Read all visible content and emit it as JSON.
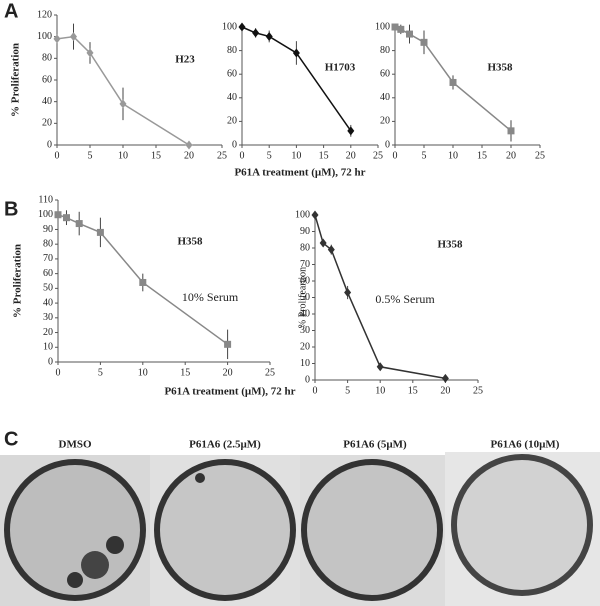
{
  "panel_letters": [
    "A",
    "B",
    "C"
  ],
  "x_axis_labels": [
    "P61A treatment (µM), 72 hr",
    "P61A treatment (µM), 72 hr"
  ],
  "chart_data": [
    {
      "type": "line",
      "title": "H23",
      "ylabel": "% Proliferation",
      "x": [
        0,
        2.5,
        5,
        10,
        20
      ],
      "values": [
        98,
        100,
        85,
        38,
        0
      ],
      "errors": [
        3,
        12,
        10,
        15,
        1
      ],
      "color": "#999999",
      "marker": "diamond",
      "xlim": [
        0,
        25
      ],
      "ylim": [
        0,
        120
      ],
      "xticks": [
        0,
        5,
        10,
        15,
        20,
        25
      ],
      "yticks": [
        0,
        20,
        40,
        60,
        80,
        100,
        120
      ]
    },
    {
      "type": "line",
      "title": "H1703",
      "x": [
        0,
        2.5,
        5,
        10,
        20
      ],
      "values": [
        100,
        95,
        92,
        78,
        12
      ],
      "errors": [
        2,
        4,
        5,
        10,
        5
      ],
      "color": "#111111",
      "marker": "diamond",
      "xlim": [
        0,
        25
      ],
      "ylim": [
        0,
        100
      ],
      "xticks": [
        0,
        5,
        10,
        15,
        20,
        25
      ],
      "yticks": [
        0,
        20,
        40,
        60,
        80,
        100
      ]
    },
    {
      "type": "line",
      "title": "H358",
      "x": [
        0,
        1,
        2.5,
        5,
        10,
        20
      ],
      "values": [
        100,
        98,
        94,
        87,
        53,
        12
      ],
      "errors": [
        2,
        4,
        8,
        10,
        6,
        9
      ],
      "color": "#888888",
      "marker": "square",
      "xlim": [
        0,
        25
      ],
      "ylim": [
        0,
        100
      ],
      "xticks": [
        0,
        5,
        10,
        15,
        20,
        25
      ],
      "yticks": [
        0,
        20,
        40,
        60,
        80,
        100
      ]
    },
    {
      "type": "line",
      "title": "H358",
      "ylabel": "% Proliferation",
      "annotation": "10% Serum",
      "x": [
        0,
        1,
        2.5,
        5,
        10,
        20
      ],
      "values": [
        100,
        98,
        94,
        88,
        54,
        12
      ],
      "errors": [
        2,
        5,
        8,
        10,
        6,
        10
      ],
      "color": "#888888",
      "marker": "square",
      "xlim": [
        0,
        25
      ],
      "ylim": [
        0,
        110
      ],
      "xticks": [
        0,
        5,
        10,
        15,
        20,
        25
      ],
      "yticks": [
        0,
        10,
        20,
        30,
        40,
        50,
        60,
        70,
        80,
        90,
        100,
        110
      ]
    },
    {
      "type": "line",
      "title": "H358",
      "ylabel": "% Prolifeartion",
      "annotation": "0.5% Serum",
      "x": [
        0,
        1.25,
        2.5,
        5,
        10,
        20
      ],
      "values": [
        100,
        83,
        79,
        53,
        8,
        1
      ],
      "errors": [
        1,
        2,
        3,
        4,
        1,
        0.5
      ],
      "color": "#333333",
      "marker": "diamond",
      "xlim": [
        0,
        25
      ],
      "ylim": [
        0,
        100
      ],
      "xticks": [
        0,
        5,
        10,
        15,
        20,
        25
      ],
      "yticks": [
        0,
        10,
        20,
        30,
        40,
        50,
        60,
        70,
        80,
        90,
        100
      ]
    }
  ],
  "photos": {
    "labels": [
      "DMSO",
      "P61A6 (2.5µM)",
      "P61A6 (5µM)",
      "P61A6 (10µM)"
    ]
  }
}
